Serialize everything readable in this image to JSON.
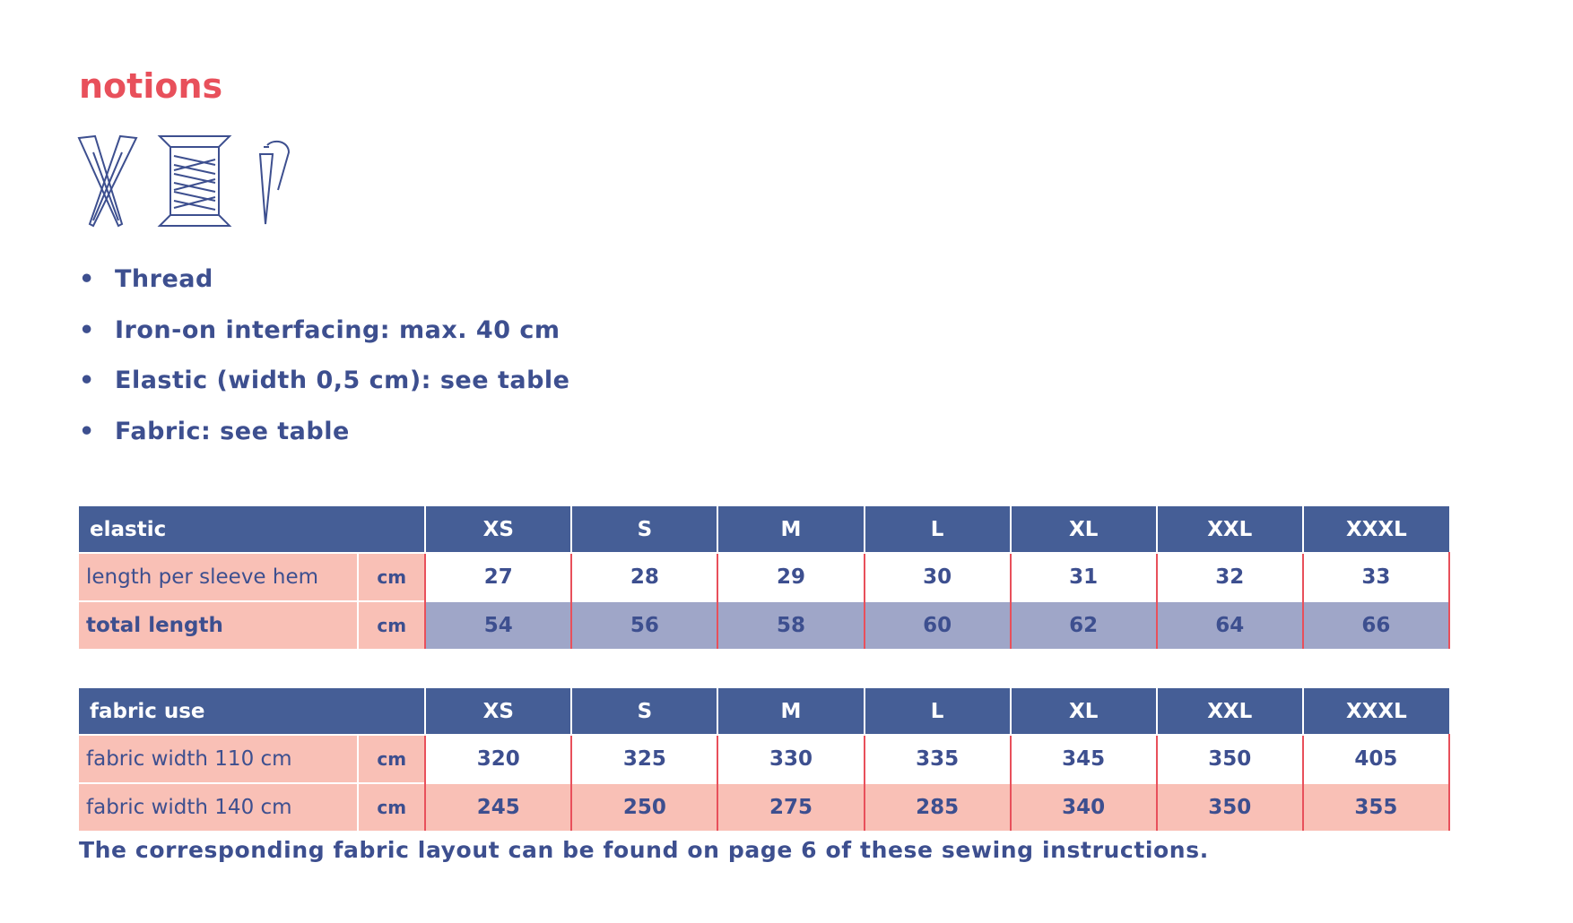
{
  "title": "notions",
  "list": [
    "Thread",
    "Iron-on interfacing: max. 40 cm",
    "Elastic (width 0,5 cm): see table",
    "Fabric: see table"
  ],
  "tables": [
    {
      "header": [
        "elastic",
        "XS",
        "S",
        "M",
        "L",
        "XL",
        "XXL",
        "XXXL"
      ],
      "rows": [
        {
          "label": "length per sleeve hem",
          "unit": "cm",
          "cells": [
            27,
            28,
            29,
            30,
            31,
            32,
            33
          ]
        },
        {
          "label": "total length",
          "unit": "cm",
          "cells": [
            54,
            56,
            58,
            60,
            62,
            64,
            66
          ]
        }
      ]
    },
    {
      "header": [
        "fabric use",
        "XS",
        "S",
        "M",
        "L",
        "XL",
        "XXL",
        "XXXL"
      ],
      "rows": [
        {
          "label": "fabric width 110 cm",
          "unit": "cm",
          "cells": [
            320,
            325,
            330,
            335,
            345,
            350,
            405
          ]
        },
        {
          "label": "fabric width 140 cm",
          "unit": "cm",
          "cells": [
            245,
            250,
            275,
            285,
            340,
            350,
            355
          ]
        }
      ]
    }
  ],
  "footer": "The corresponding fabric layout can be found on page 6 of these sewing instructions."
}
